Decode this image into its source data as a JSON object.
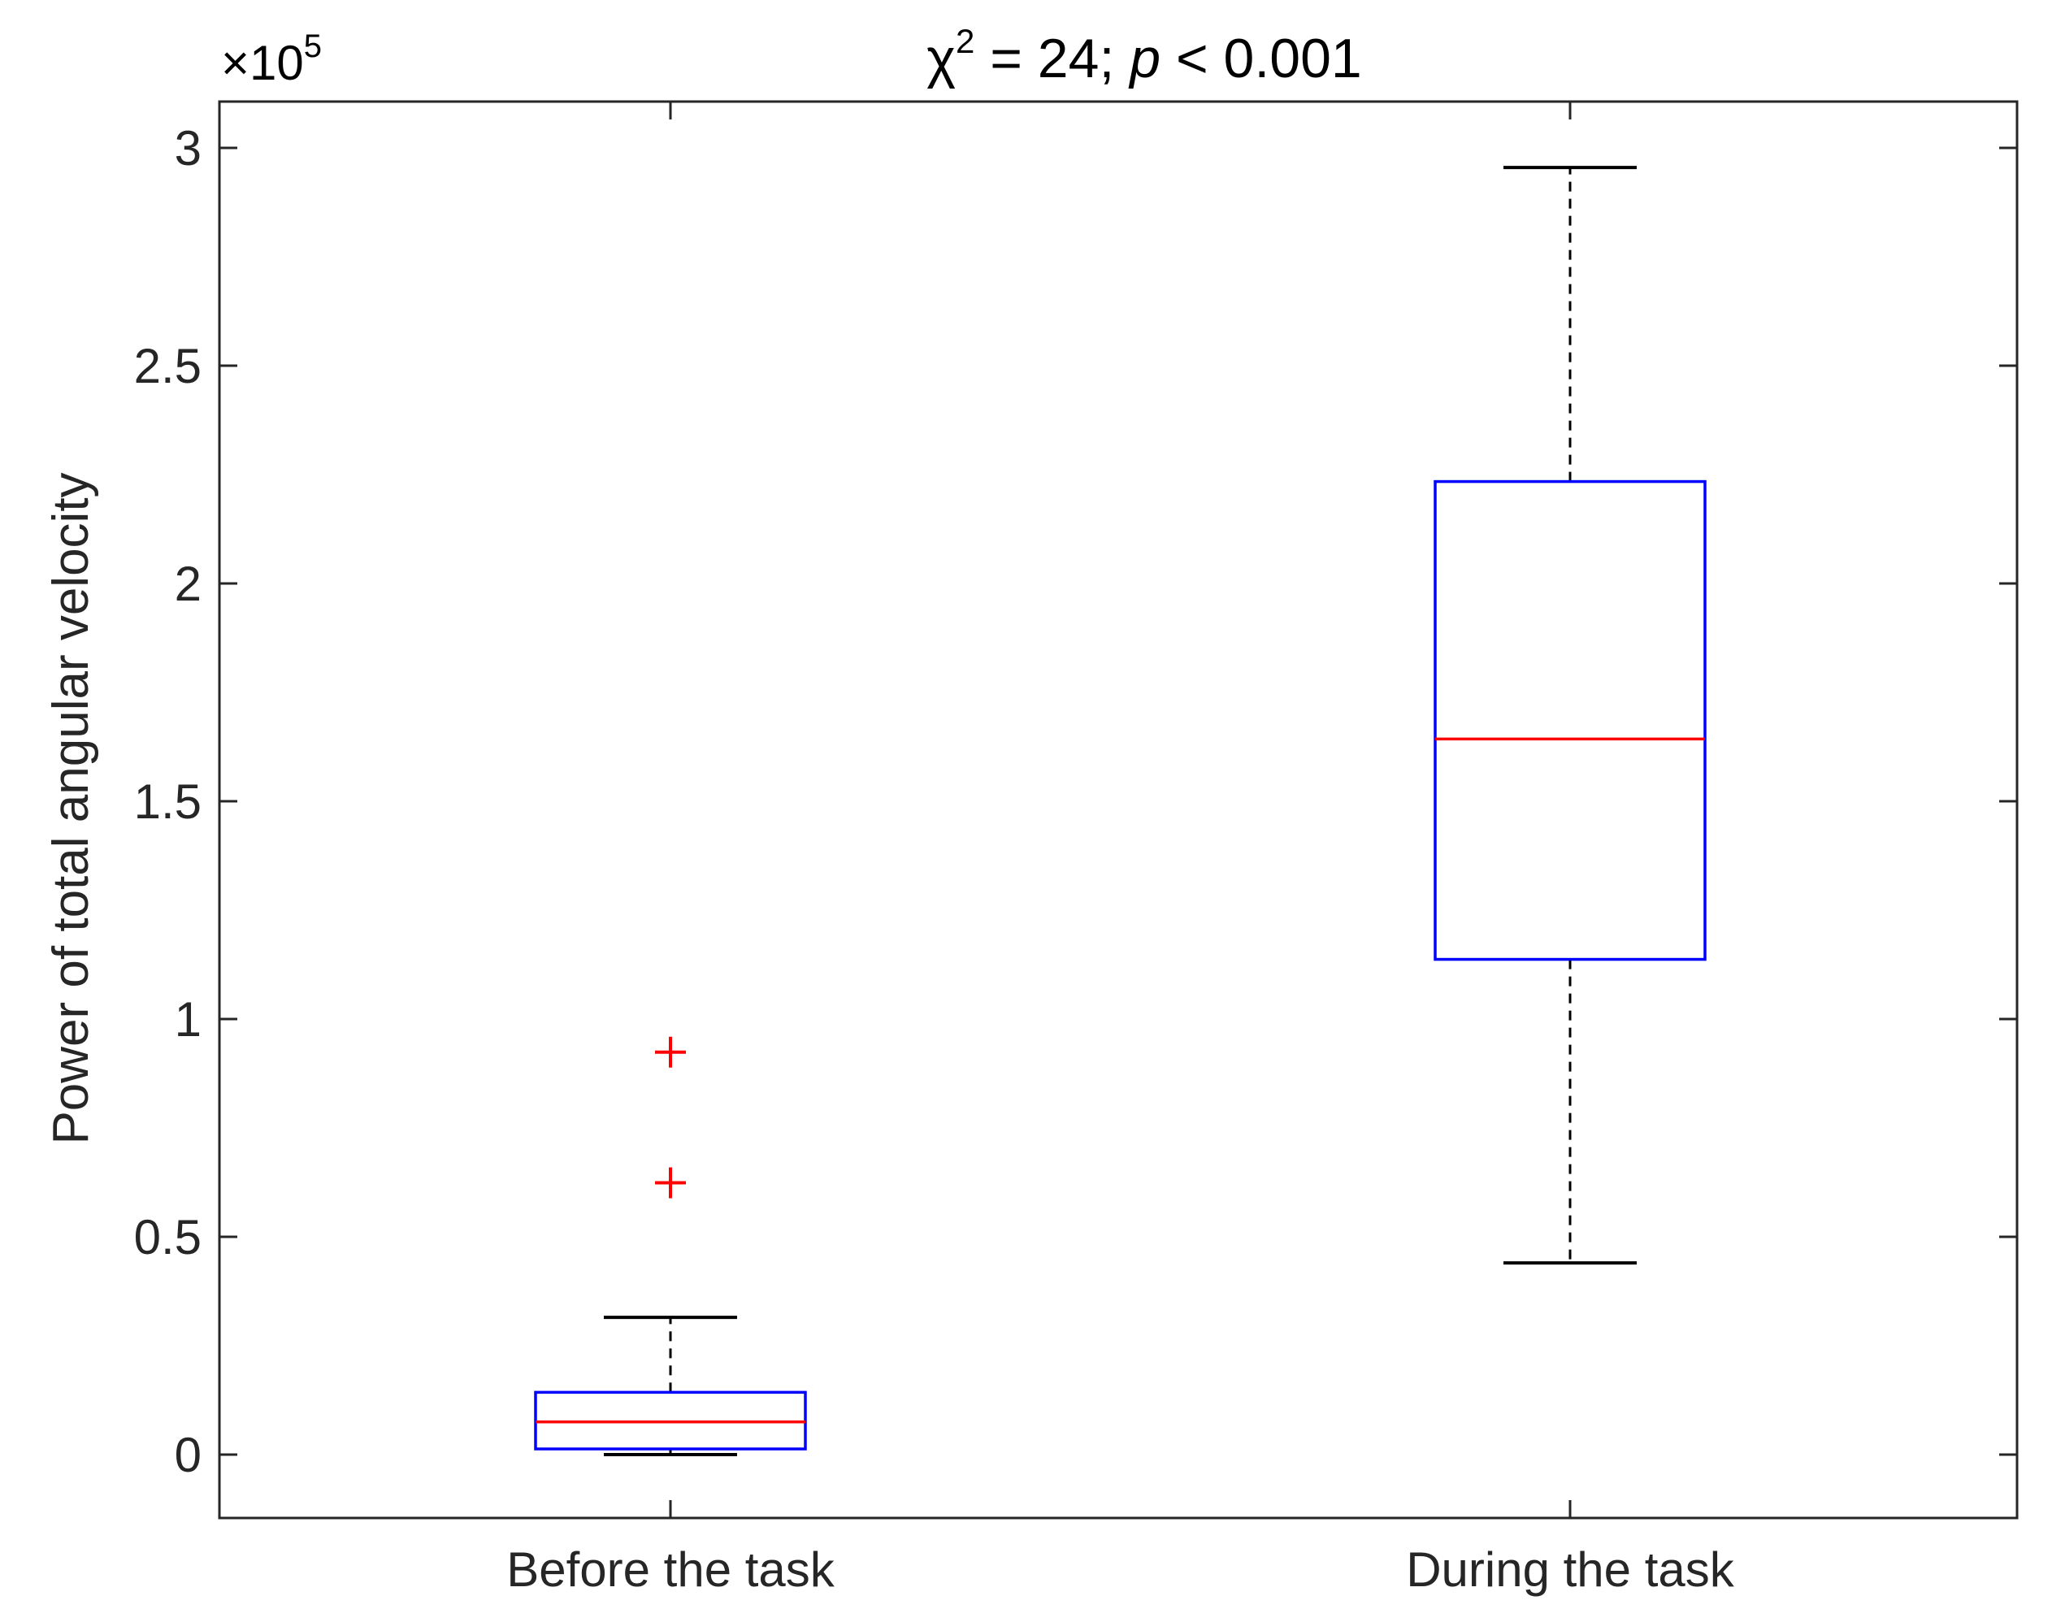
{
  "chart_data": {
    "type": "box",
    "title_parts": {
      "symbol": "χ",
      "superscript": "2",
      "mid": " = 24; ",
      "italic": "p",
      "tail": " < 0.001"
    },
    "ylabel": "Power of total angular velocity",
    "multiplier": {
      "base": "×10",
      "exponent": "5"
    },
    "ylim": [
      -0.15,
      3.1
    ],
    "yticks": [
      0,
      0.5,
      1,
      1.5,
      2,
      2.5,
      3
    ],
    "ytick_labels": [
      "0",
      "0.5",
      "1",
      "1.5",
      "2",
      "2.5",
      "3"
    ],
    "categories": [
      "Before the task",
      "During the task"
    ],
    "boxes": [
      {
        "category": "Before the task",
        "whisker_low": 0.0,
        "q1": 0.013,
        "median": 0.075,
        "q3": 0.143,
        "whisker_high": 0.315,
        "outliers": [
          0.924,
          0.624
        ]
      },
      {
        "category": "During the task",
        "whisker_low": 0.44,
        "q1": 1.137,
        "median": 1.643,
        "q3": 2.234,
        "whisker_high": 2.955,
        "outliers": []
      }
    ],
    "colors": {
      "box": "#0000ff",
      "median": "#ff0000",
      "outlier": "#ff0000",
      "whisker": "#000000",
      "axes": "#262626"
    },
    "grid": false
  }
}
